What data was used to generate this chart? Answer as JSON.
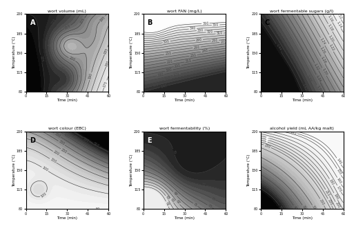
{
  "title_A": "wort volume (mL)",
  "title_B": "wort FAN (mg/L)",
  "title_C": "wort fermentable sugars (g/l)",
  "title_D": "wort colour (EBC)",
  "title_E": "wort fermentability (%)",
  "title_F": "alcohol yield (mL AA/kg malt)",
  "xlabel": "Time (min)",
  "ylabel": "Temperature (°C)",
  "panel_labels": [
    "A",
    "B",
    "C",
    "D",
    "E",
    "F"
  ]
}
